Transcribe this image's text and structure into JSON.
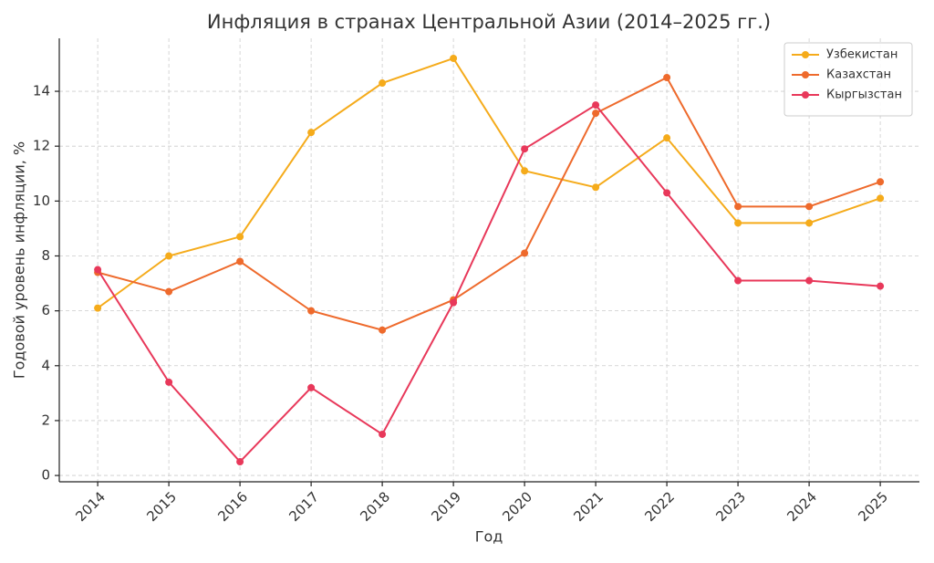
{
  "chart_data": {
    "type": "line",
    "title": "Инфляция в странах Центральной Азии (2014–2025 гг.)",
    "x_label": "Год",
    "y_label": "Годовой уровень инфляции, %",
    "categories": [
      "2014",
      "2015",
      "2016",
      "2017",
      "2018",
      "2019",
      "2020",
      "2021",
      "2022",
      "2023",
      "2024",
      "2025"
    ],
    "series": [
      {
        "name": "Узбекистан",
        "color": "#f5ab1b",
        "values": [
          6.1,
          8.0,
          8.7,
          12.5,
          14.3,
          15.2,
          11.1,
          10.5,
          12.3,
          9.2,
          9.2,
          10.1
        ]
      },
      {
        "name": "Казахстан",
        "color": "#ee6a2c",
        "values": [
          7.4,
          6.7,
          7.8,
          6.0,
          5.3,
          6.4,
          8.1,
          13.2,
          14.5,
          9.8,
          9.8,
          10.7
        ]
      },
      {
        "name": "Кыргызстан",
        "color": "#e8385a",
        "values": [
          7.5,
          3.4,
          0.5,
          3.2,
          1.5,
          6.3,
          11.9,
          13.5,
          10.3,
          7.1,
          7.1,
          6.9
        ]
      }
    ],
    "ylim": [
      -0.23,
      15.93
    ],
    "yticks": [
      0,
      2,
      4,
      6,
      8,
      10,
      12,
      14
    ],
    "grid": true,
    "legend": "upper right"
  }
}
